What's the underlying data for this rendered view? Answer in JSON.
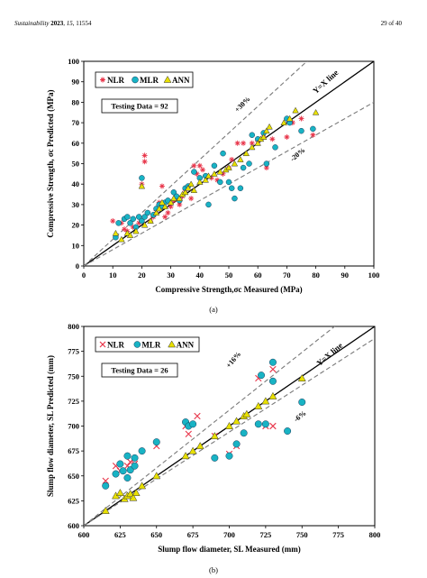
{
  "header": {
    "journal": "Sustainability",
    "year": "2023",
    "volume": "15",
    "article": "11554",
    "page": "29 of 40"
  },
  "chart_data": [
    {
      "type": "scatter",
      "caption": "(a)",
      "xlabel": "Compressive Strength,σc Measured (MPa)",
      "ylabel": "Compressive Strength, σc Predicted (MPa)",
      "xlim": [
        0,
        100
      ],
      "ylim": [
        0,
        100
      ],
      "xticks": [
        0,
        10,
        20,
        30,
        40,
        50,
        60,
        70,
        80,
        90,
        100
      ],
      "yticks": [
        0,
        10,
        20,
        30,
        40,
        50,
        60,
        70,
        80,
        90,
        100
      ],
      "grid": false,
      "legend_position": "top-left",
      "info_box": "Testing  Data = 92",
      "annotations": [
        "Y=X line",
        "+30%",
        "-20%"
      ],
      "reference_lines": [
        {
          "label": "Y=X line",
          "slope": 1.0,
          "style": "solid"
        },
        {
          "label": "+30%",
          "slope": 1.3,
          "style": "dashed"
        },
        {
          "label": "-20%",
          "slope": 0.8,
          "style": "dashed"
        }
      ],
      "colors": {
        "NLR": "#e8354a",
        "MLR": "#18b3c4",
        "ANN": "#e8e000"
      },
      "series": [
        {
          "name": "NLR",
          "marker": "star",
          "points": [
            [
              10,
              22
            ],
            [
              13,
              21
            ],
            [
              14,
              18
            ],
            [
              15,
              17
            ],
            [
              17,
              19
            ],
            [
              19,
              21
            ],
            [
              20,
              40
            ],
            [
              21,
              51
            ],
            [
              21,
              54
            ],
            [
              23,
              22
            ],
            [
              24,
              24
            ],
            [
              25,
              27
            ],
            [
              26,
              31
            ],
            [
              27,
              39
            ],
            [
              28,
              24
            ],
            [
              29,
              26
            ],
            [
              30,
              29
            ],
            [
              31,
              32
            ],
            [
              33,
              30
            ],
            [
              34,
              34
            ],
            [
              35,
              37
            ],
            [
              37,
              33
            ],
            [
              38,
              49
            ],
            [
              39,
              45
            ],
            [
              40,
              49
            ],
            [
              41,
              47
            ],
            [
              42,
              44
            ],
            [
              44,
              43
            ],
            [
              46,
              42
            ],
            [
              48,
              45
            ],
            [
              50,
              48
            ],
            [
              51,
              52
            ],
            [
              53,
              60
            ],
            [
              55,
              60
            ],
            [
              58,
              60
            ],
            [
              60,
              61
            ],
            [
              62,
              63
            ],
            [
              63,
              48
            ],
            [
              65,
              62
            ],
            [
              70,
              63
            ],
            [
              72,
              70
            ],
            [
              75,
              72
            ],
            [
              79,
              64
            ]
          ]
        },
        {
          "name": "MLR",
          "marker": "circle",
          "points": [
            [
              11,
              14
            ],
            [
              12,
              21
            ],
            [
              14,
              23
            ],
            [
              15,
              24
            ],
            [
              16,
              21
            ],
            [
              17,
              23
            ],
            [
              18,
              19
            ],
            [
              19,
              24
            ],
            [
              20,
              43
            ],
            [
              20,
              22
            ],
            [
              21,
              24
            ],
            [
              22,
              26
            ],
            [
              24,
              25
            ],
            [
              25,
              28
            ],
            [
              26,
              30
            ],
            [
              27,
              29
            ],
            [
              28,
              31
            ],
            [
              29,
              32
            ],
            [
              31,
              36
            ],
            [
              32,
              34
            ],
            [
              33,
              32
            ],
            [
              35,
              38
            ],
            [
              36,
              39
            ],
            [
              38,
              46
            ],
            [
              40,
              43
            ],
            [
              42,
              44
            ],
            [
              43,
              30
            ],
            [
              45,
              49
            ],
            [
              47,
              41
            ],
            [
              48,
              55
            ],
            [
              50,
              41
            ],
            [
              51,
              38
            ],
            [
              52,
              33
            ],
            [
              54,
              38
            ],
            [
              55,
              48
            ],
            [
              57,
              50
            ],
            [
              58,
              64
            ],
            [
              60,
              62
            ],
            [
              62,
              65
            ],
            [
              63,
              50
            ],
            [
              66,
              58
            ],
            [
              70,
              72
            ],
            [
              71,
              70
            ],
            [
              75,
              66
            ],
            [
              79,
              67
            ]
          ]
        },
        {
          "name": "ANN",
          "marker": "triangle",
          "points": [
            [
              11,
              16
            ],
            [
              13,
              13
            ],
            [
              15,
              16
            ],
            [
              16,
              15
            ],
            [
              18,
              17
            ],
            [
              20,
              39
            ],
            [
              21,
              20
            ],
            [
              23,
              22
            ],
            [
              25,
              26
            ],
            [
              26,
              28
            ],
            [
              27,
              31
            ],
            [
              28,
              29
            ],
            [
              30,
              31
            ],
            [
              31,
              33
            ],
            [
              33,
              33
            ],
            [
              34,
              35
            ],
            [
              35,
              36
            ],
            [
              36,
              38
            ],
            [
              37,
              40
            ],
            [
              38,
              37
            ],
            [
              40,
              41
            ],
            [
              42,
              42
            ],
            [
              43,
              44
            ],
            [
              45,
              45
            ],
            [
              47,
              46
            ],
            [
              49,
              47
            ],
            [
              50,
              48
            ],
            [
              52,
              50
            ],
            [
              54,
              52
            ],
            [
              56,
              55
            ],
            [
              58,
              58
            ],
            [
              60,
              60
            ],
            [
              61,
              62
            ],
            [
              62,
              63
            ],
            [
              63,
              66
            ],
            [
              64,
              68
            ],
            [
              69,
              70
            ],
            [
              71,
              72
            ],
            [
              73,
              76
            ],
            [
              80,
              75
            ]
          ]
        }
      ]
    },
    {
      "type": "scatter",
      "caption": "(b)",
      "xlabel": "Slump flow diameter, SL Measured (mm)",
      "ylabel": "Slump flow diameter, SL Predicted (mm)",
      "xlim": [
        600,
        800
      ],
      "ylim": [
        600,
        800
      ],
      "xticks": [
        600,
        625,
        650,
        675,
        700,
        725,
        750,
        775,
        800
      ],
      "yticks": [
        600,
        625,
        650,
        675,
        700,
        725,
        750,
        775,
        800
      ],
      "grid": false,
      "legend_position": "top-left",
      "info_box": "Testing  Data = 26",
      "annotations": [
        "Y=X line",
        "+16%",
        "-6%"
      ],
      "reference_lines": [
        {
          "label": "Y=X line",
          "slope": 1.0,
          "style": "solid"
        },
        {
          "label": "+16%",
          "slope": 1.16,
          "style": "dashed"
        },
        {
          "label": "-6%",
          "slope": 0.94,
          "style": "dashed"
        }
      ],
      "colors": {
        "NLR": "#e8354a",
        "MLR": "#18b3c4",
        "ANN": "#e8e000"
      },
      "series": [
        {
          "name": "NLR",
          "marker": "x",
          "points": [
            [
              615,
              645
            ],
            [
              622,
              660
            ],
            [
              625,
              655
            ],
            [
              630,
              660
            ],
            [
              632,
              664
            ],
            [
              635,
              662
            ],
            [
              650,
              680
            ],
            [
              670,
              700
            ],
            [
              672,
              692
            ],
            [
              678,
              710
            ],
            [
              690,
              690
            ],
            [
              700,
              672
            ],
            [
              705,
              680
            ],
            [
              720,
              748
            ],
            [
              725,
              700
            ],
            [
              730,
              700
            ],
            [
              730,
              757
            ]
          ]
        },
        {
          "name": "MLR",
          "marker": "circle",
          "points": [
            [
              615,
              640
            ],
            [
              622,
              652
            ],
            [
              625,
              662
            ],
            [
              627,
              655
            ],
            [
              630,
              648
            ],
            [
              630,
              670
            ],
            [
              632,
              656
            ],
            [
              635,
              660
            ],
            [
              635,
              668
            ],
            [
              640,
              675
            ],
            [
              650,
              684
            ],
            [
              670,
              704
            ],
            [
              672,
              700
            ],
            [
              675,
              702
            ],
            [
              690,
              668
            ],
            [
              700,
              670
            ],
            [
              705,
              682
            ],
            [
              710,
              693
            ],
            [
              720,
              702
            ],
            [
              722,
              751
            ],
            [
              730,
              764
            ],
            [
              740,
              695
            ],
            [
              750,
              724
            ],
            [
              725,
              702
            ],
            [
              730,
              745
            ]
          ]
        },
        {
          "name": "ANN",
          "marker": "triangle",
          "points": [
            [
              615,
              615
            ],
            [
              622,
              630
            ],
            [
              625,
              633
            ],
            [
              628,
              627
            ],
            [
              630,
              630
            ],
            [
              632,
              632
            ],
            [
              634,
              628
            ],
            [
              636,
              633
            ],
            [
              640,
              640
            ],
            [
              650,
              650
            ],
            [
              670,
              670
            ],
            [
              675,
              675
            ],
            [
              680,
              680
            ],
            [
              690,
              690
            ],
            [
              700,
              700
            ],
            [
              705,
              705
            ],
            [
              710,
              710
            ],
            [
              712,
              712
            ],
            [
              720,
              720
            ],
            [
              725,
              725
            ],
            [
              730,
              730
            ],
            [
              750,
              748
            ]
          ]
        }
      ]
    }
  ]
}
